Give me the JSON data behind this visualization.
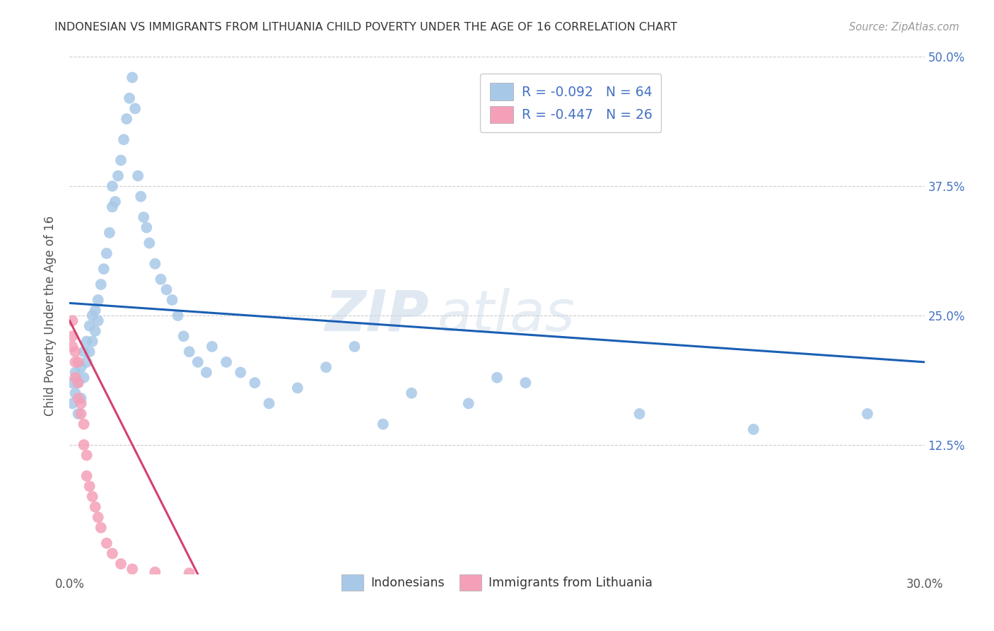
{
  "title": "INDONESIAN VS IMMIGRANTS FROM LITHUANIA CHILD POVERTY UNDER THE AGE OF 16 CORRELATION CHART",
  "source": "Source: ZipAtlas.com",
  "ylabel": "Child Poverty Under the Age of 16",
  "x_min": 0.0,
  "x_max": 0.3,
  "y_min": 0.0,
  "y_max": 0.5,
  "x_ticks": [
    0.0,
    0.05,
    0.1,
    0.15,
    0.2,
    0.25,
    0.3
  ],
  "y_ticks": [
    0.0,
    0.125,
    0.25,
    0.375,
    0.5
  ],
  "color_indonesian": "#a8c8e8",
  "color_lithuanian": "#f4a0b8",
  "color_line_indonesian": "#1a5fb4",
  "color_line_lithuanian": "#d44070",
  "watermark_zip": "ZIP",
  "watermark_atlas": "atlas",
  "indo_line_x0": 0.0,
  "indo_line_y0": 0.262,
  "indo_line_x1": 0.3,
  "indo_line_y1": 0.205,
  "lith_line_x0": 0.0,
  "lith_line_y0": 0.245,
  "lith_line_x1": 0.045,
  "lith_line_y1": 0.0,
  "indonesian_x": [
    0.001,
    0.001,
    0.002,
    0.002,
    0.003,
    0.003,
    0.004,
    0.004,
    0.005,
    0.005,
    0.006,
    0.006,
    0.007,
    0.007,
    0.008,
    0.008,
    0.009,
    0.009,
    0.01,
    0.01,
    0.011,
    0.012,
    0.013,
    0.014,
    0.015,
    0.015,
    0.016,
    0.017,
    0.018,
    0.019,
    0.02,
    0.021,
    0.022,
    0.023,
    0.024,
    0.025,
    0.026,
    0.027,
    0.028,
    0.03,
    0.032,
    0.034,
    0.036,
    0.038,
    0.04,
    0.042,
    0.045,
    0.048,
    0.05,
    0.055,
    0.06,
    0.065,
    0.07,
    0.08,
    0.09,
    0.1,
    0.11,
    0.12,
    0.14,
    0.15,
    0.16,
    0.2,
    0.24,
    0.28
  ],
  "indonesian_y": [
    0.185,
    0.165,
    0.175,
    0.195,
    0.155,
    0.185,
    0.17,
    0.2,
    0.215,
    0.19,
    0.225,
    0.205,
    0.24,
    0.215,
    0.25,
    0.225,
    0.255,
    0.235,
    0.265,
    0.245,
    0.28,
    0.295,
    0.31,
    0.33,
    0.355,
    0.375,
    0.36,
    0.385,
    0.4,
    0.42,
    0.44,
    0.46,
    0.48,
    0.45,
    0.385,
    0.365,
    0.345,
    0.335,
    0.32,
    0.3,
    0.285,
    0.275,
    0.265,
    0.25,
    0.23,
    0.215,
    0.205,
    0.195,
    0.22,
    0.205,
    0.195,
    0.185,
    0.165,
    0.18,
    0.2,
    0.22,
    0.145,
    0.175,
    0.165,
    0.19,
    0.185,
    0.155,
    0.14,
    0.155
  ],
  "lithuanian_x": [
    0.001,
    0.001,
    0.001,
    0.002,
    0.002,
    0.002,
    0.003,
    0.003,
    0.003,
    0.004,
    0.004,
    0.005,
    0.005,
    0.006,
    0.006,
    0.007,
    0.008,
    0.009,
    0.01,
    0.011,
    0.013,
    0.015,
    0.018,
    0.022,
    0.03,
    0.042
  ],
  "lithuanian_y": [
    0.245,
    0.23,
    0.22,
    0.215,
    0.205,
    0.19,
    0.205,
    0.185,
    0.17,
    0.165,
    0.155,
    0.145,
    0.125,
    0.115,
    0.095,
    0.085,
    0.075,
    0.065,
    0.055,
    0.045,
    0.03,
    0.02,
    0.01,
    0.005,
    0.002,
    0.001
  ]
}
